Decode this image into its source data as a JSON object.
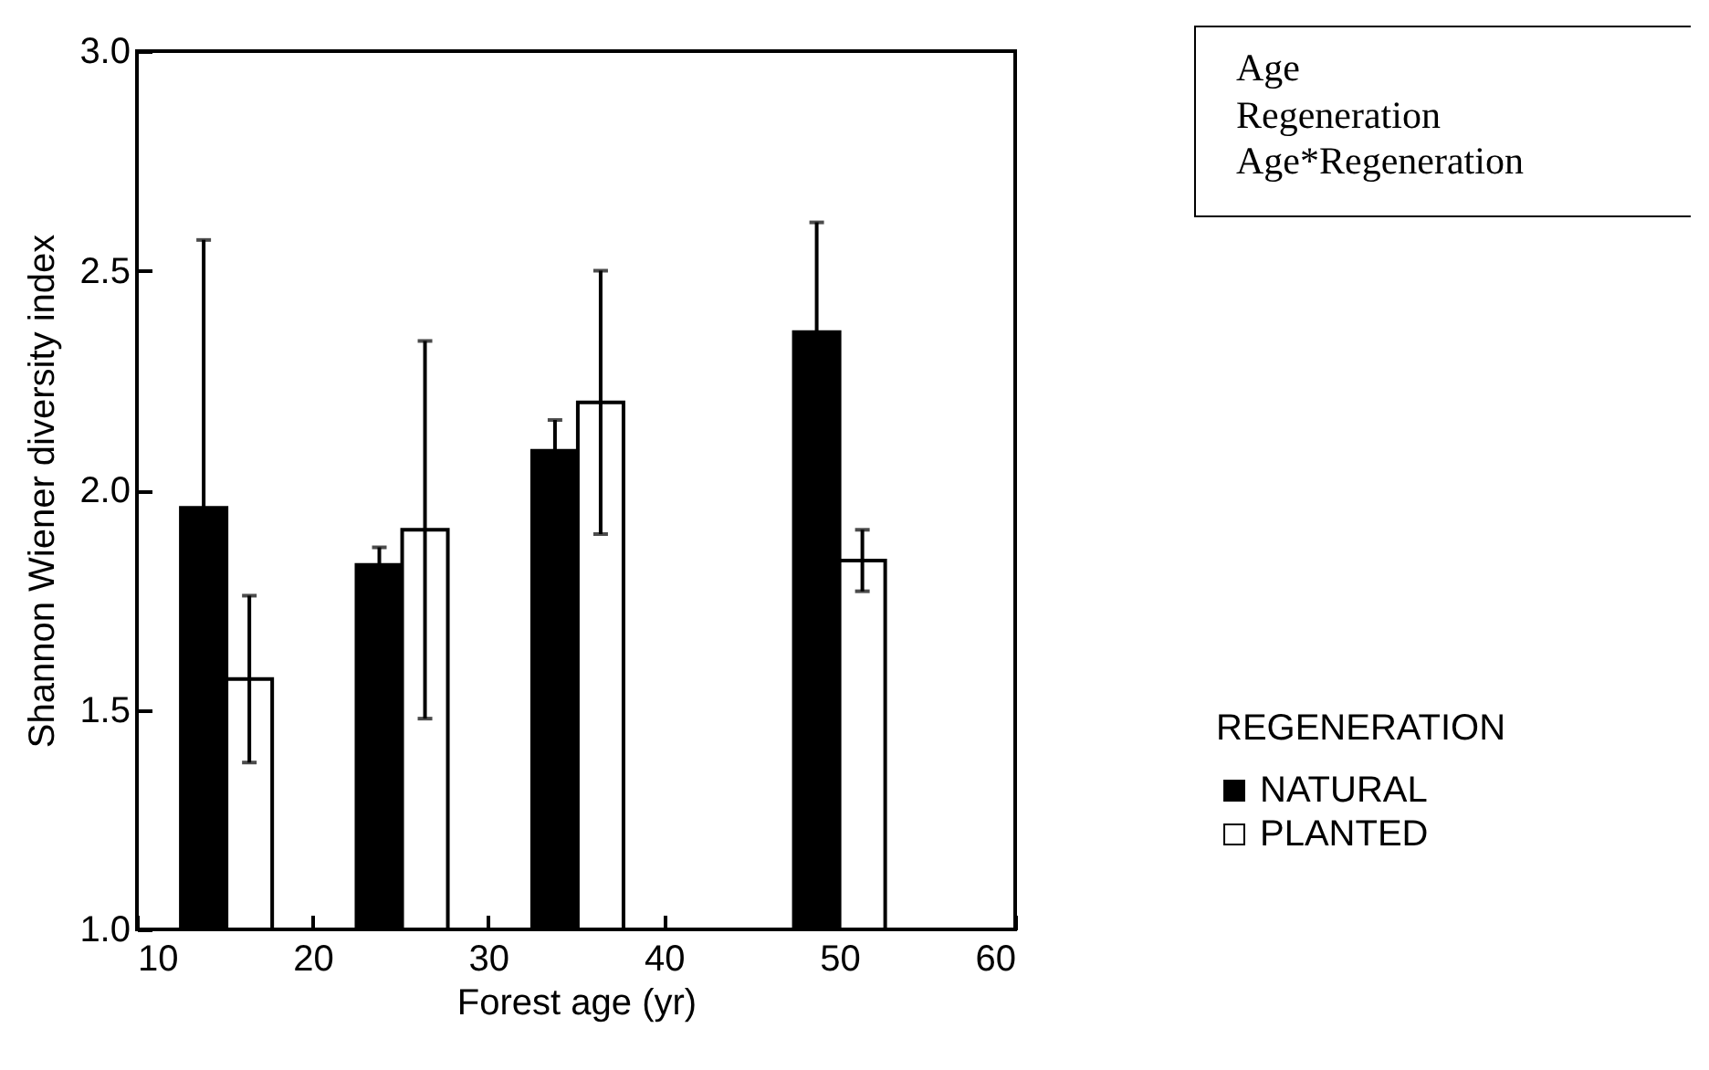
{
  "chart_data": {
    "type": "bar",
    "xlabel": "Forest age (yr)",
    "ylabel": "Shannon Wiener diversity index",
    "legend_title": "REGENERATION",
    "annotations": [
      "Age",
      "Regeneration",
      "Age*Regeneration"
    ],
    "series": [
      {
        "name": "NATURAL",
        "color": "#000000",
        "x": [
          13.8,
          23.8,
          33.8,
          48.7
        ],
        "values": [
          1.96,
          1.83,
          2.09,
          2.36
        ],
        "errors": [
          0.61,
          0.04,
          0.07,
          0.25
        ]
      },
      {
        "name": "PLANTED",
        "color": "#ffffff",
        "x": [
          16.4,
          26.4,
          36.4,
          51.3
        ],
        "values": [
          1.57,
          1.91,
          2.2,
          1.84
        ],
        "errors": [
          0.19,
          0.43,
          0.3,
          0.07
        ]
      }
    ],
    "xlim": [
      10,
      60
    ],
    "xticks": [
      10,
      20,
      30,
      40,
      50,
      60
    ],
    "ylim": [
      1,
      3
    ],
    "yticks": [
      {
        "value": 1,
        "label": "1.0"
      },
      1.5,
      {
        "value": 2,
        "label": "2.0"
      },
      2.5,
      {
        "value": 3,
        "label": "3.0"
      }
    ],
    "grid": false,
    "legend": "right"
  }
}
